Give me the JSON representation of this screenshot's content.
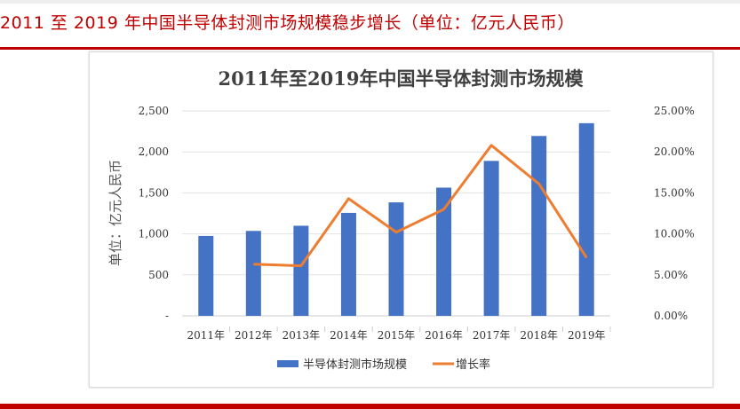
{
  "heading": "2011 至 2019 年中国半导体封测市场规模稳步增长（单位：亿元人民币）",
  "colors": {
    "accent_red": "#c00000",
    "bar": "#4472c4",
    "line": "#ed7d31"
  },
  "chart_data": {
    "type": "bar+line",
    "title": "2011年至2019年中国半导体封测市场规模",
    "ylabel": "单位：亿元人民币",
    "categories": [
      "2011年",
      "2012年",
      "2013年",
      "2014年",
      "2015年",
      "2016年",
      "2017年",
      "2018年",
      "2019年"
    ],
    "left_axis": {
      "ylim": [
        0,
        2500
      ],
      "ticks": [
        "-",
        "500",
        "1,000",
        "1,500",
        "2,000",
        "2,500"
      ]
    },
    "right_axis": {
      "ylim": [
        0,
        25
      ],
      "ticks": [
        "0.00%",
        "5.00%",
        "10.00%",
        "15.00%",
        "20.00%",
        "25.00%"
      ]
    },
    "grid": true,
    "legend_position": "bottom",
    "series": [
      {
        "name": "半导体封测市场规模",
        "type": "bar",
        "axis": "left",
        "values": [
          975,
          1036,
          1099,
          1256,
          1384,
          1564,
          1890,
          2194,
          2350
        ]
      },
      {
        "name": "增长率",
        "type": "line",
        "axis": "right",
        "unit": "%",
        "values": [
          null,
          6.3,
          6.1,
          14.3,
          10.2,
          13.0,
          20.8,
          16.1,
          7.1
        ]
      }
    ]
  }
}
